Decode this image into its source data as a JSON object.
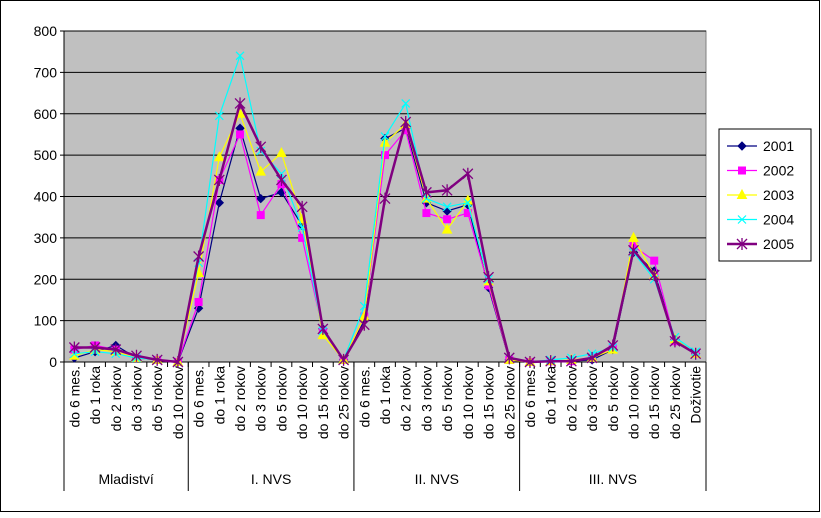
{
  "chart_data": {
    "type": "line",
    "title": "",
    "xlabel": "",
    "ylabel": "",
    "ylim": [
      0,
      800
    ],
    "yticks": [
      0,
      100,
      200,
      300,
      400,
      500,
      600,
      700,
      800
    ],
    "grid": "horizontal",
    "legend_position": "right",
    "plot_background": "#c0c0c0",
    "categories": [
      "do 6 mes.",
      "do 1 roka",
      "do 2 rokov",
      "do 3 rokov",
      "do 5 rokov",
      "do 10 rokov",
      "do 6 mes.",
      "do 1 roka",
      "do 2 rokov",
      "do 3 rokov",
      "do 5 rokov",
      "do 10 rokov",
      "do 15 rokov",
      "do 25 rokov",
      "do 6 mes.",
      "do 1 roka",
      "do 2 rokov",
      "do 3 rokov",
      "do 5 rokov",
      "do 10 rokov",
      "do 15 rokov",
      "do 25 rokov",
      "do 6 mes.",
      "do 1 roka",
      "do 2 rokov",
      "do 3 rokov",
      "do 5 rokov",
      "do 10 rokov",
      "do 15 rokov",
      "do 25 rokov",
      "Doživotie"
    ],
    "groups": [
      {
        "label": "Mladiství",
        "count": 6
      },
      {
        "label": "I. NVS",
        "count": 8
      },
      {
        "label": "II. NVS",
        "count": 8
      },
      {
        "label": "III. NVS",
        "count": 9
      }
    ],
    "series": [
      {
        "name": "2001",
        "color": "#000080",
        "marker": "diamond",
        "values": [
          10,
          25,
          40,
          10,
          5,
          0,
          130,
          385,
          565,
          395,
          410,
          330,
          80,
          5,
          100,
          540,
          565,
          385,
          365,
          380,
          180,
          5,
          0,
          2,
          2,
          5,
          30,
          265,
          220,
          55,
          20
        ]
      },
      {
        "name": "2002",
        "color": "#ff00ff",
        "marker": "square",
        "values": [
          30,
          40,
          30,
          10,
          5,
          0,
          145,
          440,
          550,
          355,
          430,
          300,
          75,
          5,
          110,
          500,
          560,
          360,
          345,
          360,
          185,
          5,
          0,
          2,
          2,
          10,
          35,
          280,
          245,
          50,
          20
        ]
      },
      {
        "name": "2003",
        "color": "#ffff00",
        "marker": "triangle",
        "values": [
          15,
          30,
          25,
          10,
          5,
          0,
          215,
          495,
          600,
          460,
          505,
          345,
          65,
          5,
          110,
          530,
          575,
          395,
          320,
          390,
          195,
          5,
          0,
          2,
          5,
          10,
          30,
          300,
          210,
          55,
          20
        ]
      },
      {
        "name": "2004",
        "color": "#00ffff",
        "marker": "x",
        "values": [
          20,
          25,
          20,
          10,
          5,
          0,
          240,
          595,
          740,
          510,
          455,
          325,
          75,
          5,
          135,
          545,
          625,
          395,
          375,
          385,
          200,
          10,
          0,
          5,
          10,
          20,
          35,
          265,
          200,
          60,
          25
        ]
      },
      {
        "name": "2005",
        "color": "#800080",
        "marker": "star",
        "values": [
          35,
          35,
          30,
          15,
          5,
          0,
          255,
          440,
          625,
          520,
          440,
          375,
          80,
          5,
          90,
          395,
          580,
          410,
          415,
          455,
          205,
          10,
          0,
          2,
          2,
          10,
          40,
          270,
          210,
          50,
          20
        ]
      }
    ]
  }
}
